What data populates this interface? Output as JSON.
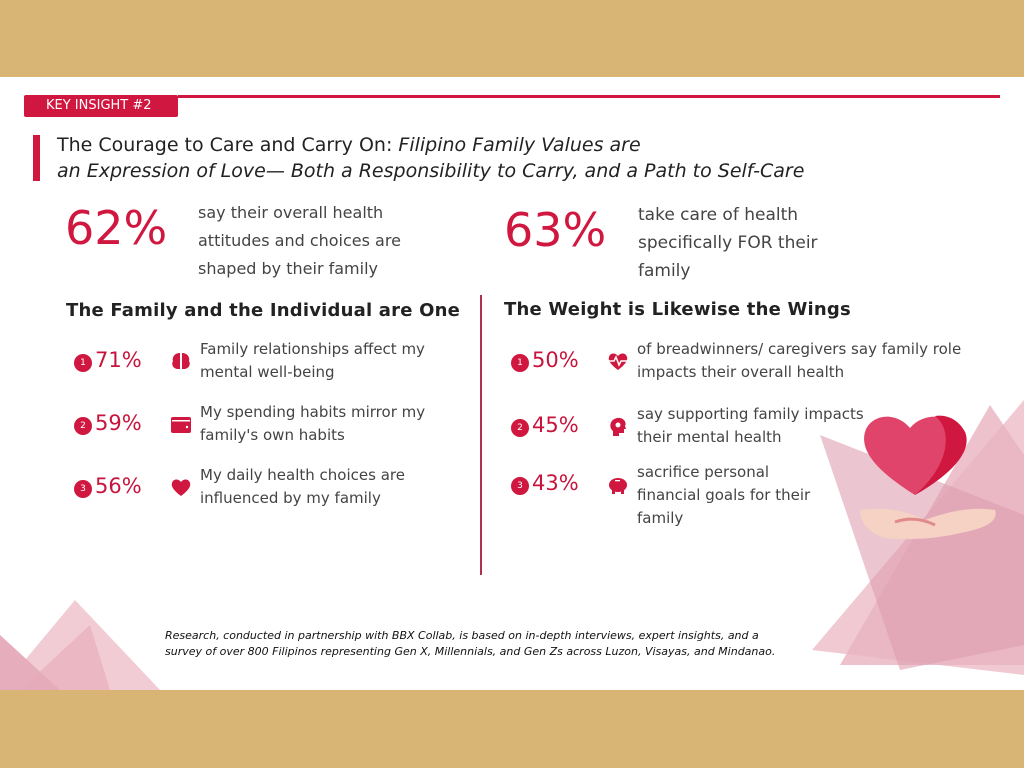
{
  "badge": "KEY INSIGHT #2",
  "title": {
    "normal": "The Courage to Care and Carry On: ",
    "italic_1": "Filipino Family Values are",
    "italic_2": "an Expression of Love— Both a Responsibility to Carry, and a Path to Self-Care"
  },
  "left": {
    "headline_pct": "62%",
    "headline_lines": [
      "say their overall health",
      "attitudes and choices are",
      "shaped by their family"
    ],
    "subheading": "The Family and the Individual are One",
    "items": [
      {
        "num": "1",
        "pct": "71%",
        "icon": "brain-icon",
        "lines": [
          "Family relationships affect my",
          "mental well-being"
        ]
      },
      {
        "num": "2",
        "pct": "59%",
        "icon": "wallet-icon",
        "lines": [
          "My spending habits mirror my",
          "family's own habits"
        ]
      },
      {
        "num": "3",
        "pct": "56%",
        "icon": "heart-icon",
        "lines": [
          "My daily health choices are",
          "influenced by my family"
        ]
      }
    ]
  },
  "right": {
    "headline_pct": "63%",
    "headline_lines": [
      "take care of health",
      "specifically FOR their",
      "family"
    ],
    "subheading": "The Weight is Likewise the Wings",
    "items": [
      {
        "num": "1",
        "pct": "50%",
        "icon": "heartbeat-icon",
        "lines": [
          "of breadwinners/ caregivers say family role",
          "impacts their overall health"
        ]
      },
      {
        "num": "2",
        "pct": "45%",
        "icon": "head-gear-icon",
        "lines": [
          "say supporting family impacts",
          "their mental health"
        ]
      },
      {
        "num": "3",
        "pct": "43%",
        "icon": "piggy-bank-icon",
        "lines": [
          "sacrifice personal",
          "financial goals for their",
          "family"
        ]
      }
    ]
  },
  "footnote": "Research, conducted in partnership with BBX Collab, is based on in-depth interviews, expert insights, and a survey of over 800 Filipinos representing Gen X, Millennials, and Gen Zs across Luzon, Visayas, and Mindanao.",
  "colors": {
    "accent": "#d0173f",
    "band": "#d8b574",
    "decor_pink": "#e8b4c0"
  }
}
